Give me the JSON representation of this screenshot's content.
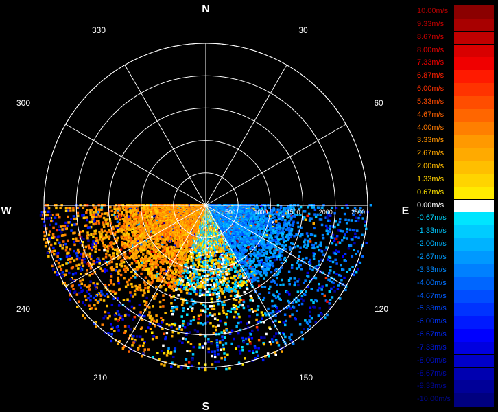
{
  "chart_data": {
    "type": "polar-radar",
    "compass": {
      "north": "N",
      "south": "S",
      "east": "E",
      "west": "W"
    },
    "azimuth_ticks": [
      "30",
      "60",
      "120",
      "150",
      "210",
      "240",
      "300",
      "330"
    ],
    "range_ticks": [
      "500",
      "1000",
      "1500",
      "2000",
      "2500"
    ],
    "range_max": 2500,
    "grid": true,
    "legend_placement": "right",
    "colorbar": [
      {
        "label": "10.00m/s",
        "value": 10.0,
        "color": "#8b0000",
        "text_color": "#b00000"
      },
      {
        "label": "9.33m/s",
        "value": 9.33,
        "color": "#a80000",
        "text_color": "#c00000"
      },
      {
        "label": "8.67m/s",
        "value": 8.67,
        "color": "#c00000",
        "text_color": "#d00000"
      },
      {
        "label": "8.00m/s",
        "value": 8.0,
        "color": "#d80000",
        "text_color": "#e00000"
      },
      {
        "label": "7.33m/s",
        "value": 7.33,
        "color": "#f00000",
        "text_color": "#f00000"
      },
      {
        "label": "6.87m/s",
        "value": 6.87,
        "color": "#ff1a00",
        "text_color": "#ff2000"
      },
      {
        "label": "6.00m/s",
        "value": 6.0,
        "color": "#ff3300",
        "text_color": "#ff3000"
      },
      {
        "label": "5.33m/s",
        "value": 5.33,
        "color": "#ff4d00",
        "text_color": "#ff4a00"
      },
      {
        "label": "4.67m/s",
        "value": 4.67,
        "color": "#ff6600",
        "text_color": "#ff6200"
      },
      {
        "label": "4.00m/s",
        "value": 4.0,
        "color": "#ff7f00",
        "text_color": "#ff7a00"
      },
      {
        "label": "3.33m/s",
        "value": 3.33,
        "color": "#ff9900",
        "text_color": "#ff9400"
      },
      {
        "label": "2.67m/s",
        "value": 2.67,
        "color": "#ffaa00",
        "text_color": "#ffa800"
      },
      {
        "label": "2.00m/s",
        "value": 2.0,
        "color": "#ffbf00",
        "text_color": "#ffbc00"
      },
      {
        "label": "1.33m/s",
        "value": 1.33,
        "color": "#ffd400",
        "text_color": "#ffd000"
      },
      {
        "label": "0.67m/s",
        "value": 0.67,
        "color": "#ffea00",
        "text_color": "#ffe400"
      },
      {
        "label": "0.00m/s",
        "value": 0.0,
        "color": "#ffffff",
        "text_color": "#ffffff"
      },
      {
        "label": "-0.67m/s",
        "value": -0.67,
        "color": "#00e5ff",
        "text_color": "#00d8ff"
      },
      {
        "label": "-1.33m/s",
        "value": -1.33,
        "color": "#00ccff",
        "text_color": "#00c8ff"
      },
      {
        "label": "-2.00m/s",
        "value": -2.0,
        "color": "#00b3ff",
        "text_color": "#00b4ff"
      },
      {
        "label": "-2.67m/s",
        "value": -2.67,
        "color": "#0099ff",
        "text_color": "#009cff"
      },
      {
        "label": "-3.33m/s",
        "value": -3.33,
        "color": "#0080ff",
        "text_color": "#0088ff"
      },
      {
        "label": "-4.00m/s",
        "value": -4.0,
        "color": "#0066ff",
        "text_color": "#0070ff"
      },
      {
        "label": "-4.67m/s",
        "value": -4.67,
        "color": "#004dff",
        "text_color": "#005cff"
      },
      {
        "label": "-5.33m/s",
        "value": -5.33,
        "color": "#0033ff",
        "text_color": "#0048ff"
      },
      {
        "label": "-6.00m/s",
        "value": -6.0,
        "color": "#001aff",
        "text_color": "#0036ff"
      },
      {
        "label": "-6.67m/s",
        "value": -6.67,
        "color": "#0000ff",
        "text_color": "#0026f0"
      },
      {
        "label": "-7.33m/s",
        "value": -7.33,
        "color": "#0000e0",
        "text_color": "#0018e0"
      },
      {
        "label": "-8.00m/s",
        "value": -8.0,
        "color": "#0000c8",
        "text_color": "#0010c8"
      },
      {
        "label": "-8.67m/s",
        "value": -8.67,
        "color": "#0000b0",
        "text_color": "#0008b0"
      },
      {
        "label": "-9.33m/s",
        "value": -9.33,
        "color": "#000098",
        "text_color": "#000898"
      },
      {
        "label": "-10.00m/s",
        "value": -10.0,
        "color": "#000080",
        "text_color": "#000880"
      }
    ]
  }
}
